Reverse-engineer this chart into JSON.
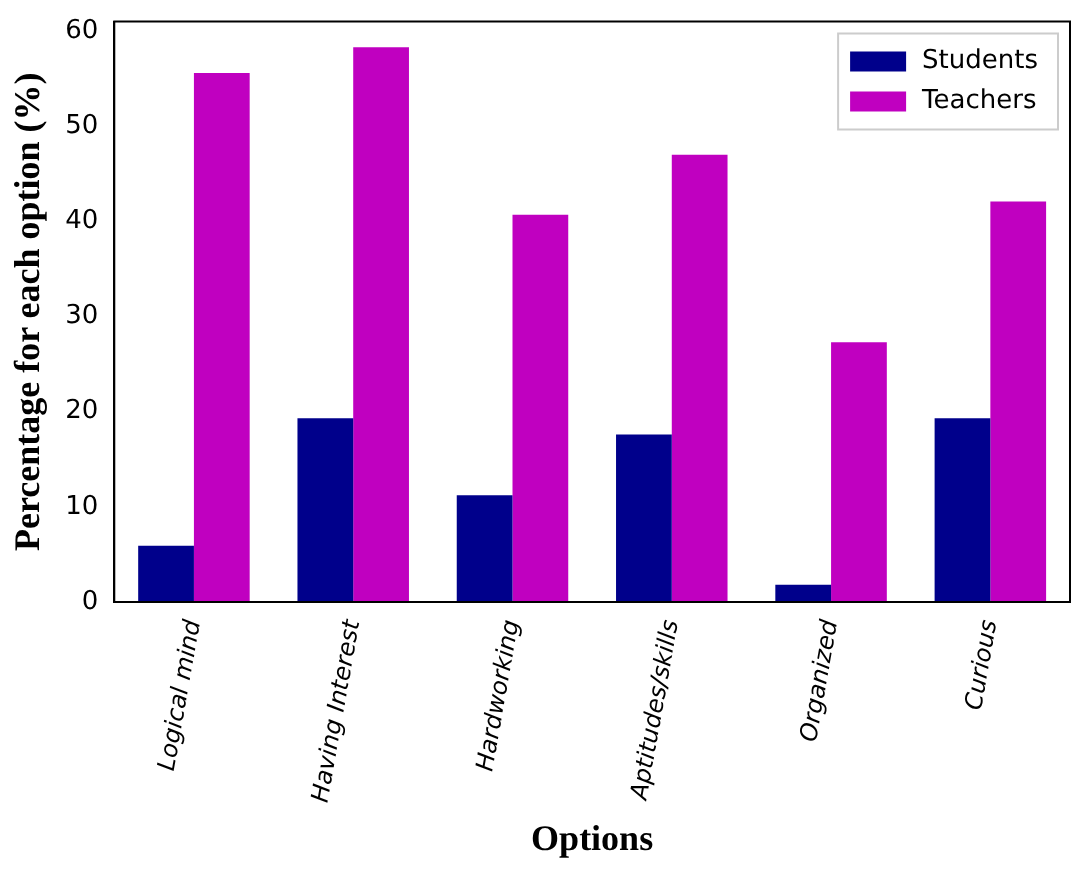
{
  "chart_data": {
    "type": "bar",
    "xlabel": "Options",
    "ylabel": "Percentage for each option (%)",
    "categories": [
      "Logical mind",
      "Having Interest",
      "Hardworking",
      "Aptitudes/skills",
      "Organized",
      "Curious"
    ],
    "series": [
      {
        "name": "Students",
        "color": "#00008b",
        "values": [
          5.9,
          19.3,
          11.2,
          17.6,
          1.8,
          19.3
        ]
      },
      {
        "name": "Teachers",
        "color": "#c000c0",
        "values": [
          55.6,
          58.3,
          40.7,
          47.0,
          27.3,
          42.1
        ]
      }
    ],
    "ylim": [
      0,
      61
    ],
    "yticks": [
      0,
      10,
      20,
      30,
      40,
      50,
      60
    ],
    "legend": "top right",
    "grid": false
  }
}
